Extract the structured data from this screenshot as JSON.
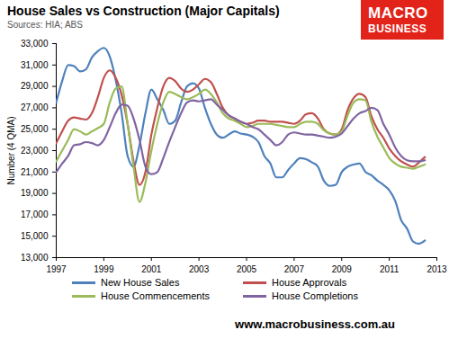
{
  "chart_data": {
    "type": "line",
    "title": "House Sales vs Construction (Major Capitals)",
    "subtitle": "Sources: HIA; ABS",
    "y_label": "Number (4 QMA)",
    "annotations": [
      "MACRO",
      "BUSINESS",
      "www.macrobusiness.com.au"
    ],
    "legend": "bottom",
    "grid": false,
    "x": [
      1997,
      1997.25,
      1997.5,
      1997.75,
      1998,
      1998.25,
      1998.5,
      1998.75,
      1999,
      1999.25,
      1999.5,
      1999.75,
      2000,
      2000.25,
      2000.5,
      2000.75,
      2001,
      2001.25,
      2001.5,
      2001.75,
      2002,
      2002.25,
      2002.5,
      2002.75,
      2003,
      2003.25,
      2003.5,
      2003.75,
      2004,
      2004.25,
      2004.5,
      2004.75,
      2005,
      2005.25,
      2005.5,
      2005.75,
      2006,
      2006.25,
      2006.5,
      2006.75,
      2007,
      2007.25,
      2007.5,
      2007.75,
      2008,
      2008.25,
      2008.5,
      2008.75,
      2009,
      2009.25,
      2009.5,
      2009.75,
      2010,
      2010.25,
      2010.5,
      2010.75,
      2011,
      2011.25,
      2011.5,
      2011.75,
      2012,
      2012.25,
      2012.5
    ],
    "series": [
      {
        "name": "New House Sales",
        "color": "#4f81bd",
        "values": [
          27500,
          29500,
          31000,
          30900,
          30400,
          30600,
          31700,
          32300,
          32600,
          31800,
          29600,
          26500,
          22500,
          21500,
          23500,
          26500,
          28700,
          27800,
          26800,
          25500,
          25800,
          27500,
          29000,
          29300,
          28800,
          27000,
          25500,
          24500,
          24200,
          24500,
          24800,
          24600,
          24500,
          24300,
          23800,
          22500,
          21800,
          20500,
          20500,
          21200,
          21800,
          22300,
          22200,
          21900,
          21500,
          20200,
          19700,
          19800,
          21000,
          21500,
          21700,
          21800,
          21000,
          20700,
          20200,
          19800,
          19300,
          18300,
          16500,
          15700,
          14500,
          14300,
          14600
        ]
      },
      {
        "name": "House Approvals",
        "color": "#c0504d",
        "values": [
          23700,
          24800,
          25800,
          26100,
          26000,
          25900,
          26500,
          28000,
          29800,
          30500,
          29800,
          28200,
          25500,
          22000,
          19800,
          21000,
          24500,
          27000,
          29000,
          29800,
          29500,
          28800,
          28500,
          28700,
          29200,
          29700,
          29400,
          28300,
          27000,
          26300,
          26000,
          25700,
          25500,
          25600,
          25800,
          25800,
          25700,
          25700,
          25700,
          25600,
          25500,
          25800,
          26400,
          26500,
          26000,
          25000,
          24600,
          24500,
          25000,
          26800,
          27900,
          28300,
          28000,
          26200,
          25000,
          24200,
          23200,
          22500,
          22000,
          21700,
          21500,
          21900,
          22400
        ]
      },
      {
        "name": "House Commencements",
        "color": "#9bbb59",
        "values": [
          22000,
          23000,
          24000,
          25000,
          24800,
          24500,
          24800,
          25100,
          25500,
          27500,
          28800,
          29000,
          25500,
          21500,
          18200,
          20000,
          23000,
          25500,
          27500,
          28500,
          28300,
          28000,
          27800,
          28000,
          28300,
          28700,
          28300,
          27500,
          26500,
          26000,
          25800,
          25500,
          25200,
          25300,
          25500,
          25500,
          25500,
          25400,
          25300,
          25200,
          25200,
          25500,
          25700,
          25700,
          25500,
          24900,
          24600,
          24500,
          24800,
          26300,
          27500,
          27800,
          27700,
          25700,
          24300,
          23300,
          22300,
          21800,
          21500,
          21400,
          21300,
          21500,
          21700
        ]
      },
      {
        "name": "House Completions",
        "color": "#8064a2",
        "values": [
          21000,
          21800,
          22500,
          23500,
          23600,
          23800,
          23700,
          23500,
          24000,
          25200,
          26500,
          27300,
          27200,
          26000,
          24000,
          21500,
          20800,
          21000,
          22300,
          23800,
          25200,
          26500,
          27500,
          27700,
          27600,
          27700,
          27800,
          27300,
          26800,
          26300,
          26000,
          25700,
          25500,
          25200,
          25000,
          24500,
          24000,
          23500,
          23800,
          24500,
          24700,
          24600,
          24500,
          24500,
          24400,
          24300,
          24200,
          24300,
          24600,
          25300,
          26000,
          26500,
          26700,
          27000,
          26800,
          25500,
          24500,
          23300,
          22500,
          22100,
          22000,
          22000,
          22100
        ]
      }
    ],
    "xlim": [
      1997,
      2013
    ],
    "xticks": [
      1997,
      1999,
      2001,
      2003,
      2005,
      2007,
      2009,
      2011,
      2013
    ],
    "ylim": [
      13000,
      33000
    ],
    "yticks": [
      {
        "value": 13000,
        "label": "13,000"
      },
      {
        "value": 15000,
        "label": "15,000"
      },
      {
        "value": 17000,
        "label": "17,000"
      },
      {
        "value": 19000,
        "label": "19,000"
      },
      {
        "value": 21000,
        "label": "21,000"
      },
      {
        "value": 23000,
        "label": "23,000"
      },
      {
        "value": 25000,
        "label": "25,000"
      },
      {
        "value": 27000,
        "label": "27,000"
      },
      {
        "value": 29000,
        "label": "29,000"
      },
      {
        "value": 31000,
        "label": "31,000"
      },
      {
        "value": 33000,
        "label": "33,000"
      }
    ]
  }
}
